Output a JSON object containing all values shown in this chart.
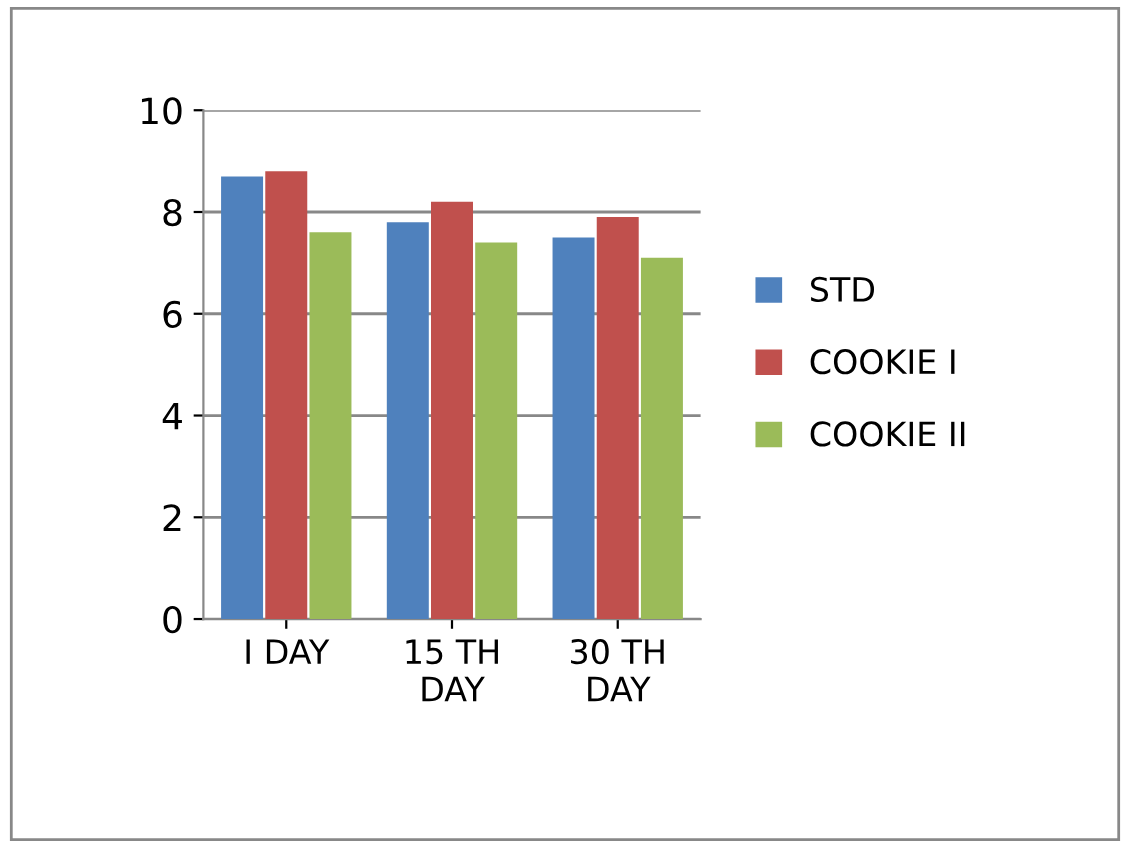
{
  "chart_data": {
    "type": "bar",
    "categories": [
      "I DAY",
      "15 TH\nDAY",
      "30 TH\nDAY"
    ],
    "series": [
      {
        "name": "STD",
        "color": "#4f81bd",
        "values": [
          8.7,
          7.8,
          7.5
        ]
      },
      {
        "name": "COOKIE I",
        "color": "#c0504d",
        "values": [
          8.8,
          8.2,
          7.9
        ]
      },
      {
        "name": "COOKIE II",
        "color": "#9bbb59",
        "values": [
          7.6,
          7.4,
          7.1
        ]
      }
    ],
    "ylim": [
      0,
      10
    ],
    "yticks": [
      0,
      2,
      4,
      6,
      8,
      10
    ],
    "grid": "y",
    "legend": "right"
  }
}
